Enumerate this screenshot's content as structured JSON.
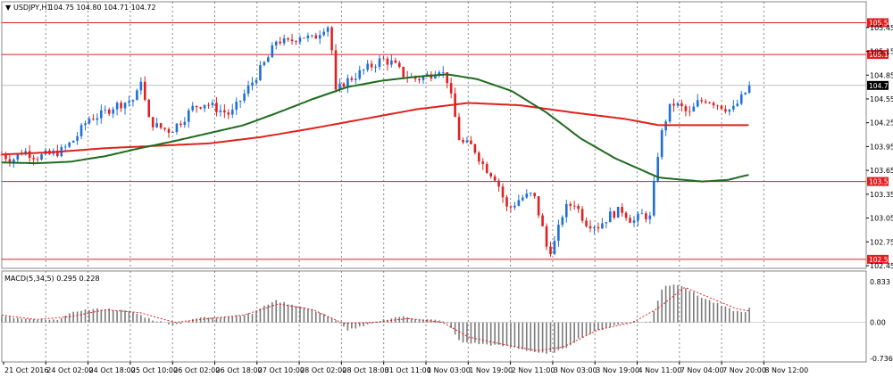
{
  "header": {
    "symbol_label": "USDJPY,H1",
    "ohlc": "104.75 104.80 104.71 104.72"
  },
  "macd_label": "MACD(5,34,5) 0.295 0.228",
  "colors": {
    "background": "#ffffff",
    "bull_candle": "#1e6fd9",
    "bear_candle": "#e02020",
    "ma_fast": "#e0201a",
    "ma_slow": "#1e6b1e",
    "level_line": "#e02020",
    "macd_bar": "#7a7a7a",
    "macd_signal": "#e02020",
    "grid": "#555555"
  },
  "chart_data": [
    {
      "type": "candlestick",
      "symbol": "USDJPY",
      "timeframe": "H1",
      "ylim": [
        102.45,
        105.65
      ],
      "y_ticks": [
        "105.45",
        "105.15",
        "104.85",
        "104.55",
        "104.25",
        "103.95",
        "103.65",
        "103.35",
        "103.05",
        "102.75",
        "102.45"
      ],
      "x_ticks": [
        "21 Oct 2016",
        "24 Oct 02:00",
        "24 Oct 18:00",
        "25 Oct 10:00",
        "26 Oct 02:00",
        "26 Oct 18:00",
        "27 Oct 10:00",
        "28 Oct 02:00",
        "28 Oct 18:00",
        "31 Oct 11:00",
        "1 Nov 03:00",
        "1 Nov 19:00",
        "2 Nov 11:00",
        "3 Nov 03:00",
        "3 Nov 19:00",
        "4 Nov 11:00",
        "7 Nov 04:00",
        "7 Nov 20:00",
        "8 Nov 12:00"
      ],
      "horizontal_levels": [
        {
          "value": 105.51,
          "label": "105.51"
        },
        {
          "value": 105.11,
          "label": "105.11"
        },
        {
          "value": 103.51,
          "label": "103.51"
        },
        {
          "value": 102.53,
          "label": "102.53"
        }
      ],
      "current_price": {
        "value": 104.72,
        "label": "104.72"
      },
      "price_path": [
        [
          0,
          103.85
        ],
        [
          12,
          103.78
        ],
        [
          25,
          103.9
        ],
        [
          40,
          103.82
        ],
        [
          55,
          103.85
        ],
        [
          70,
          103.9
        ],
        [
          85,
          104.05
        ],
        [
          100,
          104.3
        ],
        [
          115,
          104.35
        ],
        [
          128,
          104.45
        ],
        [
          140,
          104.5
        ],
        [
          155,
          104.55
        ],
        [
          162,
          104.85
        ],
        [
          168,
          104.3
        ],
        [
          180,
          104.2
        ],
        [
          195,
          104.15
        ],
        [
          210,
          104.3
        ],
        [
          222,
          104.45
        ],
        [
          235,
          104.5
        ],
        [
          250,
          104.42
        ],
        [
          265,
          104.35
        ],
        [
          280,
          104.6
        ],
        [
          295,
          104.85
        ],
        [
          310,
          105.1
        ],
        [
          318,
          105.3
        ],
        [
          330,
          105.25
        ],
        [
          345,
          105.35
        ],
        [
          360,
          105.3
        ],
        [
          372,
          105.45
        ],
        [
          380,
          105.48
        ],
        [
          385,
          104.6
        ],
        [
          395,
          104.75
        ],
        [
          410,
          104.85
        ],
        [
          425,
          104.95
        ],
        [
          440,
          105.05
        ],
        [
          452,
          105.0
        ],
        [
          465,
          104.85
        ],
        [
          480,
          104.8
        ],
        [
          495,
          104.85
        ],
        [
          505,
          104.95
        ],
        [
          515,
          104.8
        ],
        [
          522,
          104.45
        ],
        [
          530,
          104.0
        ],
        [
          545,
          103.95
        ],
        [
          558,
          103.7
        ],
        [
          572,
          103.55
        ],
        [
          585,
          103.15
        ],
        [
          600,
          103.3
        ],
        [
          615,
          103.35
        ],
        [
          625,
          102.95
        ],
        [
          632,
          102.6
        ],
        [
          640,
          102.75
        ],
        [
          650,
          103.15
        ],
        [
          662,
          103.25
        ],
        [
          675,
          103.0
        ],
        [
          690,
          102.95
        ],
        [
          705,
          103.1
        ],
        [
          718,
          103.15
        ],
        [
          730,
          103.0
        ],
        [
          742,
          103.1
        ],
        [
          750,
          103.05
        ],
        [
          758,
          103.8
        ],
        [
          765,
          104.2
        ],
        [
          775,
          104.5
        ],
        [
          785,
          104.45
        ],
        [
          795,
          104.35
        ],
        [
          805,
          104.5
        ],
        [
          815,
          104.55
        ],
        [
          825,
          104.5
        ],
        [
          835,
          104.45
        ],
        [
          845,
          104.4
        ],
        [
          855,
          104.55
        ],
        [
          866,
          104.72
        ]
      ],
      "ma_fast_path": [
        [
          0,
          103.85
        ],
        [
          60,
          103.88
        ],
        [
          120,
          103.93
        ],
        [
          180,
          103.96
        ],
        [
          240,
          103.99
        ],
        [
          300,
          104.07
        ],
        [
          360,
          104.18
        ],
        [
          420,
          104.3
        ],
        [
          480,
          104.42
        ],
        [
          540,
          104.5
        ],
        [
          600,
          104.47
        ],
        [
          660,
          104.38
        ],
        [
          720,
          104.3
        ],
        [
          760,
          104.22
        ],
        [
          866,
          104.22
        ]
      ],
      "ma_slow_path": [
        [
          0,
          103.75
        ],
        [
          40,
          103.74
        ],
        [
          80,
          103.76
        ],
        [
          120,
          103.83
        ],
        [
          160,
          103.93
        ],
        [
          200,
          104.02
        ],
        [
          240,
          104.12
        ],
        [
          280,
          104.22
        ],
        [
          320,
          104.38
        ],
        [
          360,
          104.55
        ],
        [
          400,
          104.7
        ],
        [
          440,
          104.78
        ],
        [
          480,
          104.83
        ],
        [
          515,
          104.86
        ],
        [
          550,
          104.8
        ],
        [
          590,
          104.65
        ],
        [
          630,
          104.38
        ],
        [
          670,
          104.05
        ],
        [
          710,
          103.8
        ],
        [
          760,
          103.56
        ],
        [
          810,
          103.51
        ],
        [
          840,
          103.53
        ],
        [
          866,
          103.6
        ]
      ]
    },
    {
      "type": "bar",
      "name": "MACD(5,34,5)",
      "values_label": "0.295 0.228",
      "ylim": [
        -0.736,
        0.833
      ],
      "y_ticks": [
        "0.833",
        "0.00",
        "-0.736"
      ],
      "histogram_path": [
        [
          0,
          0.12
        ],
        [
          30,
          0.06
        ],
        [
          60,
          0.04
        ],
        [
          90,
          0.25
        ],
        [
          120,
          0.28
        ],
        [
          150,
          0.22
        ],
        [
          175,
          0.05
        ],
        [
          200,
          -0.05
        ],
        [
          230,
          0.1
        ],
        [
          260,
          0.12
        ],
        [
          290,
          0.18
        ],
        [
          315,
          0.45
        ],
        [
          340,
          0.35
        ],
        [
          370,
          0.2
        ],
        [
          385,
          0.05
        ],
        [
          400,
          -0.15
        ],
        [
          420,
          -0.08
        ],
        [
          440,
          0.05
        ],
        [
          460,
          0.12
        ],
        [
          480,
          0.08
        ],
        [
          500,
          0.05
        ],
        [
          515,
          0.0
        ],
        [
          530,
          -0.4
        ],
        [
          560,
          -0.45
        ],
        [
          590,
          -0.5
        ],
        [
          610,
          -0.58
        ],
        [
          630,
          -0.65
        ],
        [
          650,
          -0.55
        ],
        [
          670,
          -0.3
        ],
        [
          700,
          -0.1
        ],
        [
          730,
          0.02
        ],
        [
          750,
          0.01
        ],
        [
          765,
          0.75
        ],
        [
          785,
          0.78
        ],
        [
          805,
          0.55
        ],
        [
          825,
          0.4
        ],
        [
          845,
          0.25
        ],
        [
          858,
          0.2
        ],
        [
          866,
          0.3
        ]
      ],
      "signal_path": [
        [
          0,
          0.15
        ],
        [
          40,
          0.06
        ],
        [
          80,
          0.12
        ],
        [
          120,
          0.26
        ],
        [
          160,
          0.2
        ],
        [
          200,
          0.0
        ],
        [
          240,
          0.08
        ],
        [
          280,
          0.15
        ],
        [
          320,
          0.38
        ],
        [
          360,
          0.26
        ],
        [
          395,
          -0.02
        ],
        [
          430,
          0.0
        ],
        [
          470,
          0.08
        ],
        [
          510,
          0.0
        ],
        [
          540,
          -0.3
        ],
        [
          580,
          -0.45
        ],
        [
          620,
          -0.58
        ],
        [
          650,
          -0.5
        ],
        [
          690,
          -0.15
        ],
        [
          730,
          0.0
        ],
        [
          760,
          0.3
        ],
        [
          790,
          0.72
        ],
        [
          820,
          0.5
        ],
        [
          850,
          0.28
        ],
        [
          866,
          0.23
        ]
      ]
    }
  ]
}
